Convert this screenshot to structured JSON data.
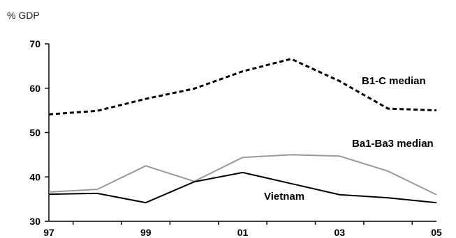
{
  "chart_data": {
    "type": "line",
    "ylabel": "% GDP",
    "ylim": [
      30,
      70
    ],
    "yticks": [
      30,
      40,
      50,
      60,
      70
    ],
    "x": [
      1997,
      1998,
      1999,
      2000,
      2001,
      2002,
      2003,
      2004,
      2005
    ],
    "xtick_labels": [
      "97",
      "99",
      "01",
      "03",
      "05"
    ],
    "xtick_values": [
      1997,
      1999,
      2001,
      2003,
      2005
    ],
    "grid": false,
    "series": [
      {
        "name": "B1-C median",
        "values": [
          54.1,
          54.9,
          57.6,
          59.9,
          63.8,
          66.6,
          61.6,
          55.4,
          55.0
        ],
        "color": "#000000",
        "style": "dashed"
      },
      {
        "name": "Ba1-Ba3 median",
        "values": [
          36.6,
          37.2,
          42.5,
          39.0,
          44.4,
          45.0,
          44.7,
          41.3,
          36.0
        ],
        "color": "#999999",
        "style": "solid"
      },
      {
        "name": "Vietnam",
        "values": [
          36.1,
          36.3,
          34.2,
          38.9,
          41.0,
          38.5,
          36.0,
          35.3,
          34.2
        ],
        "color": "#000000",
        "style": "solid"
      }
    ]
  }
}
